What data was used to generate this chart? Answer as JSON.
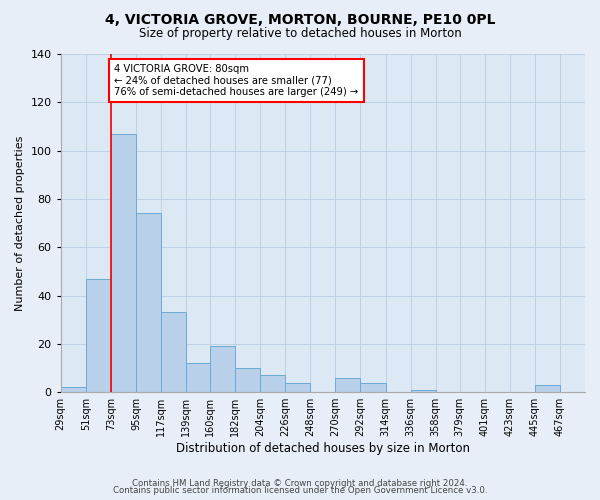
{
  "title": "4, VICTORIA GROVE, MORTON, BOURNE, PE10 0PL",
  "subtitle": "Size of property relative to detached houses in Morton",
  "xlabel": "Distribution of detached houses by size in Morton",
  "ylabel": "Number of detached properties",
  "bin_labels": [
    "29sqm",
    "51sqm",
    "73sqm",
    "95sqm",
    "117sqm",
    "139sqm",
    "160sqm",
    "182sqm",
    "204sqm",
    "226sqm",
    "248sqm",
    "270sqm",
    "292sqm",
    "314sqm",
    "336sqm",
    "358sqm",
    "379sqm",
    "401sqm",
    "423sqm",
    "445sqm",
    "467sqm"
  ],
  "bar_values": [
    2,
    47,
    107,
    74,
    33,
    12,
    19,
    10,
    7,
    4,
    0,
    6,
    4,
    0,
    1,
    0,
    0,
    0,
    0,
    3,
    0
  ],
  "bar_color": "#b8d0ea",
  "bar_edge_color": "#6aaad4",
  "vline_x": 73,
  "annotation_title": "4 VICTORIA GROVE: 80sqm",
  "annotation_line1": "← 24% of detached houses are smaller (77)",
  "annotation_line2": "76% of semi-detached houses are larger (249) →",
  "ylim": [
    0,
    140
  ],
  "yticks": [
    0,
    20,
    40,
    60,
    80,
    100,
    120,
    140
  ],
  "footer1": "Contains HM Land Registry data © Crown copyright and database right 2024.",
  "footer2": "Contains public sector information licensed under the Open Government Licence v3.0.",
  "background_color": "#e8eef8",
  "plot_bg_color": "#dde8f5",
  "grid_color": "#b8cce0"
}
